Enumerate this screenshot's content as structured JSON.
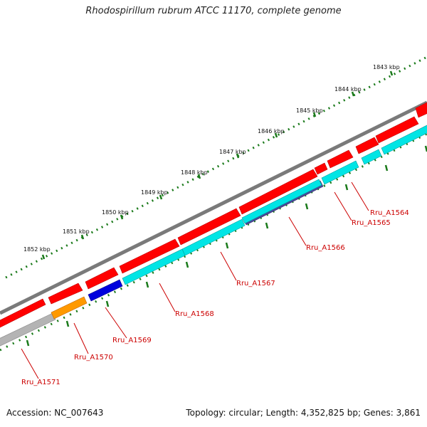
{
  "title": "Rhodospirillum rubrum ATCC 11170, complete genome",
  "accession": "Accession: NC_007643",
  "summary": "Topology: circular; Length: 4,352,825 bp; Genes: 3,861",
  "kbp_labels": [
    "1843 kbp",
    "1844 kbp",
    "1845 kbp",
    "1846 kbp",
    "1847 kbp",
    "1848 kbp",
    "1849 kbp",
    "1850 kbp",
    "1851 kbp",
    "1852 kbp"
  ],
  "gene_labels": [
    "Rru_A1564",
    "Rru_A1565",
    "Rru_A1566",
    "Rru_A1567",
    "Rru_A1568",
    "Rru_A1569",
    "Rru_A1570",
    "Rru_A1571"
  ],
  "colors": {
    "forward": "#ff0000",
    "reverse_cds": "#00e5e5",
    "backbone": "#7a7a7a",
    "tick": "#1a7a1a",
    "label": "#cc0000",
    "blue": "#0000dd",
    "orange": "#ff9900",
    "gray": "#b4b4b4",
    "slate": "#4a4a9a"
  }
}
